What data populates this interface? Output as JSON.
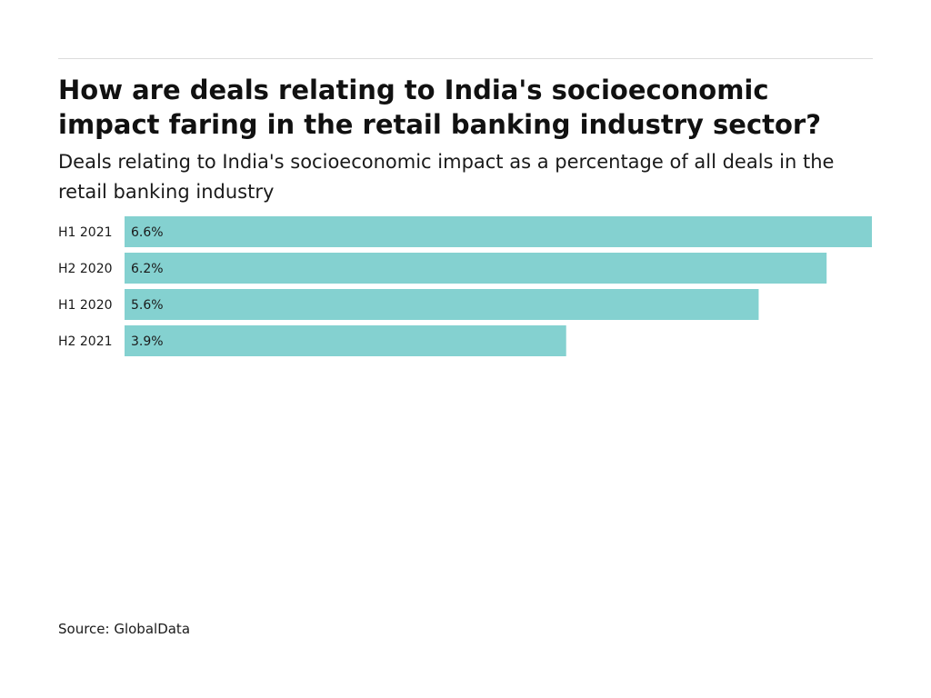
{
  "title": "How are deals relating to India's socioeconomic impact faring in the retail banking industry sector?",
  "subtitle": "Deals relating to India's socioeconomic impact as a percentage of all deals in the retail banking industry",
  "source": "Source: GlobalData",
  "colors": {
    "bar": "#84d1d0",
    "text": "#1a1a1a",
    "rule": "#dcdcdc"
  },
  "chart_data": {
    "type": "bar",
    "orientation": "horizontal",
    "categories": [
      "H1 2021",
      "H2 2020",
      "H1 2020",
      "H2 2021"
    ],
    "values": [
      6.6,
      6.2,
      5.6,
      3.9
    ],
    "value_labels": [
      "6.6%",
      "6.2%",
      "5.6%",
      "3.9%"
    ],
    "unit": "%",
    "xlim": [
      0,
      6.6
    ],
    "grid": false,
    "legend": "none"
  }
}
